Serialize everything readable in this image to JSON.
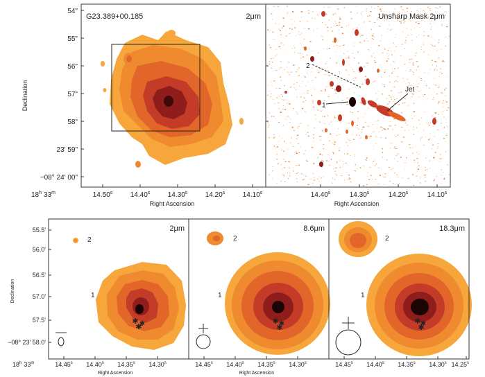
{
  "figure": {
    "source_name": "G23.389+00.185",
    "axis_label_x": "Right Ascension",
    "axis_label_y": "Declination",
    "panels": [
      {
        "id": "top-left",
        "label": "2μm",
        "dec_ticks": [
          "54\"",
          "55\"",
          "56\"",
          "57\"",
          "58\"",
          "23' 59\"",
          "−08° 24' 00\""
        ],
        "ra_prefix": {
          "h": "18",
          "hs": "h",
          "m": "33",
          "ms": "m"
        },
        "ra_ticks": [
          "14.50",
          "14.40",
          "14.30",
          "14.20",
          "14.10"
        ]
      },
      {
        "id": "top-right",
        "label": "Unsharp Mask 2μm",
        "ra_ticks": [
          "14.40",
          "14.30",
          "14.20",
          "14.10"
        ],
        "annotations": {
          "source1": "1",
          "source2": "2",
          "jet": "Jet"
        }
      },
      {
        "id": "bottom-1",
        "label": "2μm",
        "dec_ticks": [
          "55.5'",
          "56.0'",
          "56.5'",
          "57.0'",
          "57.5'",
          "−08° 23' 58.0'"
        ],
        "ra_prefix": {
          "h": "18",
          "hs": "h",
          "m": "33",
          "ms": "m"
        },
        "ra_ticks": [
          "14.45",
          "14.40",
          "14.35",
          "14.30"
        ],
        "source_labels": [
          "1",
          "2"
        ]
      },
      {
        "id": "bottom-2",
        "label": "8.6μm",
        "ra_ticks": [
          "14.45",
          "14.40",
          "14.35",
          "14.30"
        ],
        "source_labels": [
          "1",
          "2"
        ]
      },
      {
        "id": "bottom-3",
        "label": "18.3μm",
        "ra_ticks": [
          "14.45",
          "14.40",
          "14.35",
          "14.30",
          "14.25"
        ],
        "source_labels": [
          "1",
          "2"
        ]
      }
    ],
    "ra_sec_unit": "s",
    "contour_colors": [
      "#f6a63a",
      "#ef8a2e",
      "#e2652a",
      "#c43c27",
      "#8e1d1b",
      "#3d0a08"
    ],
    "marker_color": "#ffffff"
  }
}
